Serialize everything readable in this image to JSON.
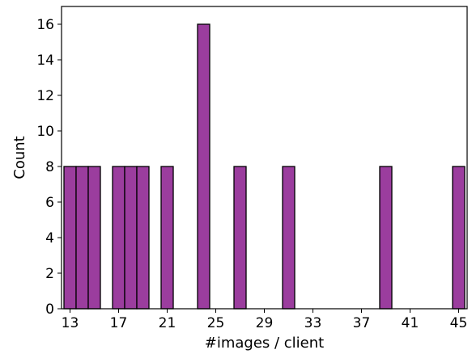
{
  "chart_data": {
    "type": "bar",
    "title": "",
    "xlabel": "#images / client",
    "ylabel": "Count",
    "bin_width": 1,
    "xlim": [
      12.3,
      45.7
    ],
    "ylim": [
      0,
      17
    ],
    "xticks": [
      13,
      17,
      21,
      25,
      29,
      33,
      37,
      41,
      45
    ],
    "yticks": [
      0,
      2,
      4,
      6,
      8,
      10,
      12,
      14,
      16
    ],
    "bins": [
      {
        "x": 13,
        "count": 8
      },
      {
        "x": 14,
        "count": 8
      },
      {
        "x": 15,
        "count": 8
      },
      {
        "x": 17,
        "count": 8
      },
      {
        "x": 18,
        "count": 8
      },
      {
        "x": 19,
        "count": 8
      },
      {
        "x": 21,
        "count": 8
      },
      {
        "x": 24,
        "count": 16
      },
      {
        "x": 27,
        "count": 8
      },
      {
        "x": 31,
        "count": 8
      },
      {
        "x": 39,
        "count": 8
      },
      {
        "x": 45,
        "count": 8
      }
    ],
    "bar_color": "#9b3d9e",
    "edge_color": "#000000",
    "grid": false,
    "legend": "none"
  }
}
